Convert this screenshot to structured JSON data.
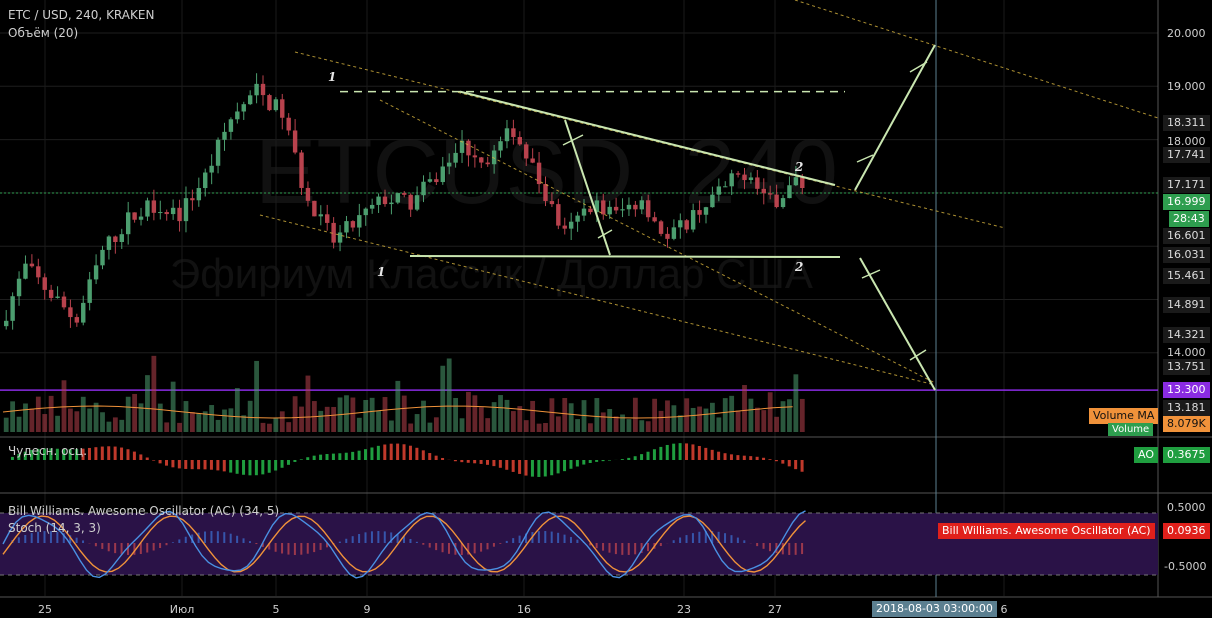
{
  "header": {
    "title": "ETC / USD, 240, KRAKEN",
    "volume_indicator": "Объём (20)"
  },
  "watermark": {
    "symbol": "ETCUSD, 240",
    "description": "Эфириум Классик / Доллар США"
  },
  "wave_labels": [
    "1",
    "2",
    "1",
    "2"
  ],
  "price_axis": {
    "ticks": [
      "20.000",
      "19.000",
      "18.000",
      "14.000"
    ],
    "level_labels": [
      "18.311",
      "17.741",
      "17.171",
      "16.601",
      "16.031",
      "15.461",
      "14.891",
      "14.321",
      "13.751",
      "13.181"
    ],
    "current_price": "16.999",
    "countdown": "28:43",
    "alert_level": "13.300"
  },
  "volume_tags": {
    "ma_label": "Volume MA",
    "ma_value": "8.079K",
    "volume_label": "Volume"
  },
  "ao_panel": {
    "title": "Чудесн. осц.",
    "tag_label": "AO",
    "tag_value": "0.3675"
  },
  "ac_panel": {
    "title": "Bill Williams. Awesome Oscillator (AC) (34, 5)",
    "stoch_title": "Stoch (14, 3, 3)",
    "ticks": [
      "0.5000",
      "-0.5000"
    ],
    "tag_label": "Bill Williams. Awesome Oscillator (AC)",
    "tag_value": "0.0936"
  },
  "time_axis": {
    "labels": [
      "25",
      "Июл",
      "5",
      "9",
      "16",
      "23",
      "27",
      "6"
    ],
    "cursor_label": "2018-08-03 03:00:00"
  },
  "colors": {
    "up": "#4c9e6f",
    "down": "#b8424d",
    "pattern_line": "#c9e6b0",
    "channel_line": "#d6b33f",
    "stoch_k": "#4a90e2",
    "stoch_d": "#f0923a",
    "alert": "#8a2be2",
    "current": "#2e9e4f",
    "ac_tag": "#e0201b"
  },
  "chart_data": [
    {
      "type": "candlestick",
      "title": "ETC / USD, 240, KRAKEN",
      "ylim": [
        13.0,
        20.4
      ],
      "x_range": [
        "Jun 23",
        "Aug 7"
      ],
      "key_levels": [
        18.9,
        16.0,
        13.3
      ],
      "current_price": 16.999,
      "path_points": [
        [
          0,
          14.5
        ],
        [
          4,
          15.6
        ],
        [
          8,
          15.1
        ],
        [
          12,
          14.6
        ],
        [
          16,
          15.9
        ],
        [
          20,
          16.5
        ],
        [
          24,
          16.8
        ],
        [
          28,
          16.6
        ],
        [
          32,
          17.3
        ],
        [
          36,
          18.4
        ],
        [
          40,
          18.9
        ],
        [
          44,
          18.5
        ],
        [
          48,
          16.8
        ],
        [
          52,
          16.1
        ],
        [
          56,
          16.5
        ],
        [
          60,
          16.9
        ],
        [
          64,
          16.8
        ],
        [
          68,
          17.3
        ],
        [
          72,
          17.9
        ],
        [
          76,
          17.6
        ],
        [
          80,
          18.2
        ],
        [
          84,
          17.2
        ],
        [
          88,
          16.2
        ],
        [
          92,
          16.8
        ],
        [
          96,
          16.6
        ],
        [
          100,
          16.9
        ],
        [
          104,
          16.1
        ],
        [
          108,
          16.6
        ],
        [
          112,
          17.0
        ],
        [
          116,
          17.4
        ],
        [
          120,
          16.8
        ],
        [
          124,
          17.2
        ],
        [
          125,
          17.1
        ]
      ],
      "grid": true
    },
    {
      "type": "bar",
      "title": "Объём (20)",
      "series": [
        {
          "name": "Volume MA",
          "value": "8.079K"
        }
      ]
    },
    {
      "type": "bar",
      "title": "Чудесн. осц.",
      "series": [
        {
          "name": "AO",
          "last": 0.3675
        }
      ]
    },
    {
      "type": "line",
      "title": "Bill Williams. Awesome Oscillator (AC) (34, 5)",
      "ylim": [
        -0.8,
        0.7
      ],
      "series": [
        {
          "name": "Bill Williams. Awesome Oscillator (AC)",
          "last": 0.0936
        }
      ]
    }
  ]
}
